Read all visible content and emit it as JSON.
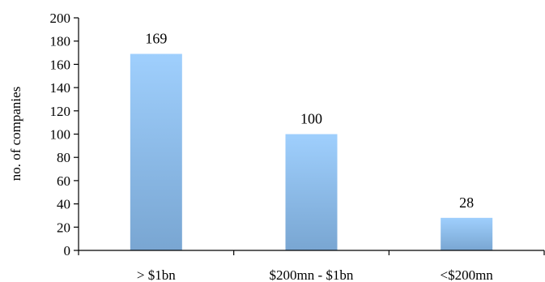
{
  "chart_data": {
    "type": "bar",
    "categories": [
      "> $1bn",
      "$200mn - $1bn",
      "<$200mn"
    ],
    "values": [
      169,
      100,
      28
    ],
    "data_labels": [
      "169",
      "100",
      "28"
    ],
    "title": "",
    "xlabel": "",
    "ylabel": "no. of companies",
    "ylim": [
      0,
      200
    ],
    "yticks": [
      "0",
      "20",
      "40",
      "60",
      "80",
      "100",
      "120",
      "140",
      "160",
      "180",
      "200"
    ],
    "grid": false,
    "legend": "none",
    "colors": {
      "bar_top": "#9fcffd",
      "bar_bottom": "#79a6d2",
      "axis": "#000000"
    }
  }
}
